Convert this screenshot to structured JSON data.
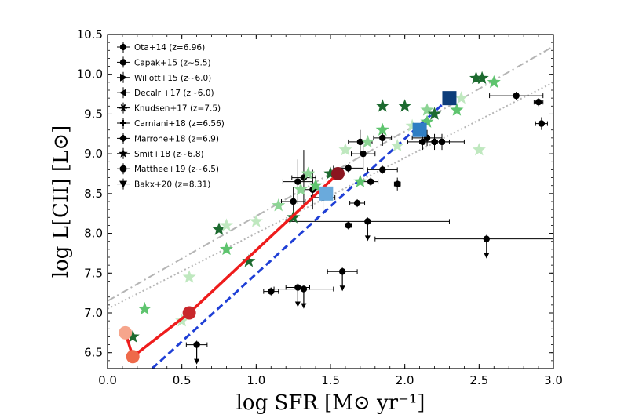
{
  "chart_data": {
    "type": "scatter",
    "xlabel": "log SFR [M⊙ yr⁻¹]",
    "ylabel": "log L[CII] [L⊙]",
    "xlim": [
      0.0,
      3.0
    ],
    "ylim": [
      6.3,
      10.5
    ],
    "xticks": [
      "0.0",
      "0.5",
      "1.0",
      "1.5",
      "2.0",
      "2.5",
      "3.0"
    ],
    "yticks": [
      "6.5",
      "7.0",
      "7.5",
      "8.0",
      "8.5",
      "9.0",
      "9.5",
      "10.0",
      "10.5"
    ],
    "grid": false,
    "legend_position": "top-left",
    "legend": [
      {
        "label": "Ota+14 (z=6.96)",
        "marker": "hexagon"
      },
      {
        "label": "Capak+15 (z∼5.5)",
        "marker": "circle"
      },
      {
        "label": "Willott+15 (z∼6.0)",
        "marker": "triangle-right"
      },
      {
        "label": "Decalri+17 (z∼6.0)",
        "marker": "triangle-left"
      },
      {
        "label": "Knudsen+17 (z=7.5)",
        "marker": "asterisk"
      },
      {
        "label": "Carniani+18 (z=6.56)",
        "marker": "thin-cross"
      },
      {
        "label": "Marrone+18 (z=6.9)",
        "marker": "diamond"
      },
      {
        "label": "Smit+18 (z∼6.8)",
        "marker": "star"
      },
      {
        "label": "Matthee+19 (z∼6.5)",
        "marker": "octagon"
      },
      {
        "label": "Bakx+20 (z=8.31)",
        "marker": "triangle-down"
      }
    ],
    "relations": [
      {
        "style": "dashdot",
        "color": "#b5b5b5",
        "points": [
          [
            0.0,
            7.15
          ],
          [
            3.0,
            10.35
          ]
        ]
      },
      {
        "style": "dotted",
        "color": "#b5b5b5",
        "points": [
          [
            0.0,
            7.05
          ],
          [
            3.0,
            9.9
          ]
        ]
      },
      {
        "style": "dashed",
        "color": "#1f3fd6",
        "points": [
          [
            0.3,
            6.3
          ],
          [
            2.3,
            9.7
          ]
        ]
      }
    ],
    "model_track": {
      "color": "#ee1c1c",
      "points": [
        [
          0.12,
          6.75
        ],
        [
          0.17,
          6.45
        ],
        [
          0.55,
          7.0
        ],
        [
          1.55,
          8.75
        ]
      ],
      "marker_colors": [
        "#f6a58c",
        "#ee6a4a",
        "#c8272b",
        "#8b1620"
      ]
    },
    "model_squares": {
      "points": [
        [
          1.47,
          8.5
        ],
        [
          2.1,
          9.3
        ],
        [
          2.3,
          9.7
        ]
      ],
      "colors": [
        "#6aaadc",
        "#2f7ec3",
        "#0d3d7a"
      ]
    },
    "stars": [
      {
        "x": 0.17,
        "y": 6.7,
        "color": "#1c6a2f"
      },
      {
        "x": 0.25,
        "y": 7.05,
        "color": "#5ec46e"
      },
      {
        "x": 0.5,
        "y": 6.9,
        "color": "#bfe8bf"
      },
      {
        "x": 0.55,
        "y": 7.45,
        "color": "#bfe8bf"
      },
      {
        "x": 0.75,
        "y": 8.05,
        "color": "#1c6a2f"
      },
      {
        "x": 0.8,
        "y": 7.8,
        "color": "#5ec46e"
      },
      {
        "x": 0.8,
        "y": 8.1,
        "color": "#bfe8bf"
      },
      {
        "x": 0.95,
        "y": 7.65,
        "color": "#1c6a2f"
      },
      {
        "x": 1.0,
        "y": 8.15,
        "color": "#bfe8bf"
      },
      {
        "x": 1.15,
        "y": 8.35,
        "color": "#8cd494"
      },
      {
        "x": 1.25,
        "y": 8.2,
        "color": "#1c6a2f"
      },
      {
        "x": 1.3,
        "y": 8.55,
        "color": "#8cd494"
      },
      {
        "x": 1.35,
        "y": 8.75,
        "color": "#8cd494"
      },
      {
        "x": 1.4,
        "y": 8.6,
        "color": "#5ec46e"
      },
      {
        "x": 1.5,
        "y": 8.75,
        "color": "#1c6a2f"
      },
      {
        "x": 1.6,
        "y": 9.05,
        "color": "#bfe8bf"
      },
      {
        "x": 1.7,
        "y": 8.65,
        "color": "#5ec46e"
      },
      {
        "x": 1.75,
        "y": 9.15,
        "color": "#8cd494"
      },
      {
        "x": 1.85,
        "y": 9.6,
        "color": "#1c6a2f"
      },
      {
        "x": 1.85,
        "y": 9.3,
        "color": "#5ec46e"
      },
      {
        "x": 1.95,
        "y": 9.1,
        "color": "#bfe8bf"
      },
      {
        "x": 2.0,
        "y": 9.6,
        "color": "#1c6a2f"
      },
      {
        "x": 2.05,
        "y": 9.35,
        "color": "#bfe8bf"
      },
      {
        "x": 2.15,
        "y": 9.55,
        "color": "#8cd494"
      },
      {
        "x": 2.15,
        "y": 9.4,
        "color": "#5ec46e"
      },
      {
        "x": 2.2,
        "y": 9.5,
        "color": "#1c6a2f"
      },
      {
        "x": 2.35,
        "y": 9.55,
        "color": "#5ec46e"
      },
      {
        "x": 2.38,
        "y": 9.7,
        "color": "#bfe8bf"
      },
      {
        "x": 2.48,
        "y": 9.95,
        "color": "#1c6a2f"
      },
      {
        "x": 2.52,
        "y": 9.95,
        "color": "#1c6a2f"
      },
      {
        "x": 2.5,
        "y": 9.05,
        "color": "#bfe8bf"
      },
      {
        "x": 2.6,
        "y": 9.9,
        "color": "#5ec46e"
      }
    ],
    "black_points": [
      {
        "x": 1.25,
        "y": 8.4,
        "xerr": 0.08,
        "yerr": 0.18
      },
      {
        "x": 1.28,
        "y": 8.65,
        "xerr": 0.1,
        "yerr": 0.28
      },
      {
        "x": 1.32,
        "y": 8.7,
        "xerr": 0.08,
        "yerr": 0.35
      },
      {
        "x": 1.38,
        "y": 8.55,
        "xerr": 0.08,
        "yerr": 0.25
      },
      {
        "x": 1.45,
        "y": 8.45,
        "xerr": 0.08,
        "yerr": 0.2
      },
      {
        "x": 1.7,
        "y": 9.15,
        "xerr": 0.08,
        "yerr": 0.15
      },
      {
        "x": 1.72,
        "y": 9.0,
        "xerr": 0.08,
        "yerr": 0.15
      },
      {
        "x": 1.85,
        "y": 9.2,
        "xerr": 0.06,
        "yerr": 0.1
      },
      {
        "x": 2.12,
        "y": 9.15,
        "xerr": 0.1,
        "yerr": 0.1
      },
      {
        "x": 2.15,
        "y": 9.2,
        "xerr": 0.1,
        "yerr": 0.1
      },
      {
        "x": 2.2,
        "y": 9.15,
        "xerr": 0.1,
        "yerr": 0.1
      },
      {
        "x": 2.25,
        "y": 9.15,
        "xerr": 0.15,
        "yerr": 0.1
      },
      {
        "x": 1.77,
        "y": 8.65,
        "xerr": 0.05,
        "yerr": 0.05
      },
      {
        "x": 1.58,
        "y": 7.52,
        "xerr": 0.1,
        "yerr": 0.05
      },
      {
        "x": 1.28,
        "y": 7.32,
        "xerr": 0.08,
        "yerr": 0.05
      },
      {
        "x": 1.32,
        "y": 7.3,
        "xerr": 0.2,
        "yerr": 0.05
      },
      {
        "x": 1.1,
        "y": 7.27,
        "xerr": 0.05,
        "yerr": 0.05
      },
      {
        "x": 0.6,
        "y": 6.6,
        "xerr": 0.07,
        "yerr": 0.05
      },
      {
        "x": 1.68,
        "y": 8.38,
        "xerr": 0.05,
        "yerr": 0.05
      },
      {
        "x": 1.62,
        "y": 8.82,
        "xerr": 0.1,
        "yerr": 0.05
      },
      {
        "x": 1.95,
        "y": 8.62,
        "xerr": 0.02,
        "yerr": 0.08
      },
      {
        "x": 1.85,
        "y": 8.8,
        "xerr": 0.1,
        "yerr": 0.05
      },
      {
        "x": 1.62,
        "y": 8.1,
        "xerr": 0.02,
        "yerr": 0.05
      },
      {
        "x": 1.75,
        "y": 8.15,
        "xerr": 0.55,
        "yerr": 0.05
      },
      {
        "x": 2.55,
        "y": 7.93,
        "xerr": 0.75,
        "yerr": 0.05
      },
      {
        "x": 2.75,
        "y": 9.73,
        "xerr": 0.18,
        "yerr": 0.05
      },
      {
        "x": 2.9,
        "y": 9.65,
        "xerr": 0.03,
        "yerr": 0.05
      },
      {
        "x": 2.92,
        "y": 9.38,
        "xerr": 0.04,
        "yerr": 0.08
      }
    ],
    "upper_limits": [
      {
        "x": 1.28,
        "y": 7.32
      },
      {
        "x": 1.32,
        "y": 7.3
      },
      {
        "x": 1.58,
        "y": 7.52
      },
      {
        "x": 0.6,
        "y": 6.6
      },
      {
        "x": 1.75,
        "y": 8.15
      },
      {
        "x": 2.55,
        "y": 7.93
      }
    ]
  }
}
